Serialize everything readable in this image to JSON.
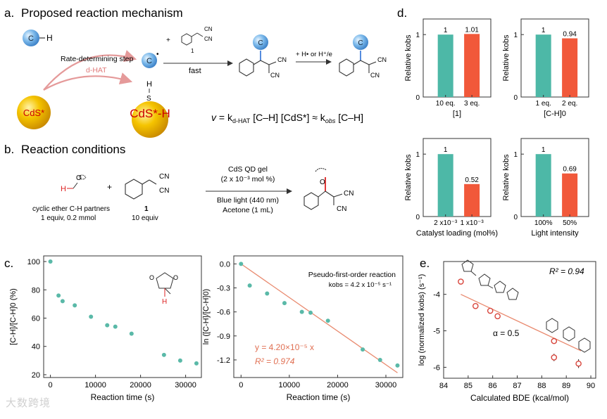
{
  "colors": {
    "teal": "#4db8a7",
    "orange": "#f1583a",
    "fit_line": "#e98a6f",
    "fit_text": "#e06f52",
    "point": "#5ab9a8",
    "bde_point": "#d8453c",
    "red": "#d22",
    "gold": "#f0b800",
    "sphere_blue": "#4a8fd2"
  },
  "panel_a": {
    "label": "a.",
    "title": "Proposed reaction mechanism",
    "radical_ch": "C",
    "h_atom": "H",
    "radical_c": "C",
    "radical_dot": "•",
    "rds": "Rate-determining step",
    "dhat": "d-HAT",
    "cds_star": "CdS*",
    "h_on_s": "H",
    "s_atom": "S",
    "cds_h": "CdS*-H",
    "plus": "+",
    "reagent_num": "1",
    "fast": "fast",
    "h_transfer": "+ H• or H⁺/e",
    "cn": "CN",
    "product_c": "C",
    "rate_v": "v",
    "rate_eq_mid": " = k",
    "rate_sub1": "d-HAT",
    "rate_eq_end": " [C–H] [CdS*] ≈ k",
    "rate_sub2": "obs",
    "rate_eq_tail": " [C–H]"
  },
  "panel_b": {
    "label": "b.",
    "title": "Reaction conditions",
    "partner_label": "cyclic ether C-H partners",
    "partner_amount": "1 equiv, 0.2 mmol",
    "h_atom": "H",
    "o_atom": "O",
    "plus": "+",
    "compound": "1",
    "compound_amount": "10 equiv",
    "cat_line1": "CdS QD gel",
    "cat_line2": "(2 x 10⁻³ mol %)",
    "cond_line1": "Blue light (440 nm)",
    "cond_line2": "Acetone (1 mL)",
    "cn": "CN"
  },
  "panel_c": {
    "label": "c.",
    "o_atom": "O",
    "h_atom": "H",
    "pseudo_title": "Pseudo-first-order reaction",
    "kobs_text": "kobs = 4.2 x 10⁻⁵ s⁻¹",
    "fit_eq": "y = 4.20×10⁻⁵ x",
    "r2_eq": "R² = 0.974"
  },
  "panel_d": {
    "label": "d."
  },
  "panel_e": {
    "label": "e.",
    "r2_text": "R² = 0.94",
    "alpha_text": "α = 0.5"
  },
  "watermark": "大数跨境",
  "chart_data": [
    {
      "id": "d1",
      "type": "bar",
      "categories": [
        "10 eq.",
        "3 eq."
      ],
      "values": [
        1,
        1.01
      ],
      "value_labels": [
        "1",
        "1.01"
      ],
      "ylabel": "Relative kobs",
      "xlabel": "[1]",
      "ylim": [
        0,
        1.25
      ],
      "yticks": [
        0,
        1
      ],
      "grid": false
    },
    {
      "id": "d2",
      "type": "bar",
      "categories": [
        "1 eq.",
        "2 eq."
      ],
      "values": [
        1,
        0.94
      ],
      "value_labels": [
        "1",
        "0.94"
      ],
      "ylabel": "Relative kobs",
      "xlabel": "[C-H]0",
      "ylim": [
        0,
        1.25
      ],
      "yticks": [
        0,
        1
      ],
      "grid": false
    },
    {
      "id": "d3",
      "type": "bar",
      "categories": [
        "2 x10⁻³",
        "1 x10⁻³"
      ],
      "values": [
        1,
        0.52
      ],
      "value_labels": [
        "1",
        "0.52"
      ],
      "ylabel": "Relative kobs",
      "xlabel": "Catalyst loading (mol%)",
      "ylim": [
        0,
        1.25
      ],
      "yticks": [
        0,
        1
      ],
      "grid": false
    },
    {
      "id": "d4",
      "type": "bar",
      "categories": [
        "100%",
        "50%"
      ],
      "values": [
        1,
        0.69
      ],
      "value_labels": [
        "1",
        "0.69"
      ],
      "ylabel": "Relative kobs",
      "xlabel": "Light intensity",
      "ylim": [
        0,
        1.25
      ],
      "yticks": [
        0,
        1
      ],
      "grid": false
    },
    {
      "id": "c1",
      "type": "scatter",
      "xlabel": "Reaction time (s)",
      "ylabel": "[C-H]/[C-H]0 (%)",
      "xlim": [
        -1500,
        33500
      ],
      "ylim": [
        18,
        104
      ],
      "xticks": [
        0,
        10000,
        20000,
        30000
      ],
      "yticks": [
        20,
        40,
        60,
        80,
        100
      ],
      "x": [
        0,
        1800,
        2700,
        5400,
        9000,
        12600,
        14400,
        18000,
        25200,
        28800,
        32400
      ],
      "y": [
        100,
        76,
        72,
        69,
        61,
        55,
        54,
        49,
        34,
        30,
        28
      ],
      "grid": false
    },
    {
      "id": "c2",
      "type": "scatter",
      "xlabel": "Reaction time (s)",
      "ylabel": "ln ([C-H]/[C-H]0)",
      "xlim": [
        -1500,
        33500
      ],
      "ylim": [
        -1.42,
        0.1
      ],
      "xticks": [
        0,
        10000,
        20000,
        30000
      ],
      "yticks": [
        0.0,
        -0.3,
        -0.6,
        -0.9,
        -1.2
      ],
      "x": [
        0,
        1800,
        5400,
        9000,
        12600,
        14400,
        18000,
        25200,
        28800,
        32400
      ],
      "y": [
        0,
        -0.27,
        -0.37,
        -0.49,
        -0.6,
        -0.61,
        -0.71,
        -1.07,
        -1.2,
        -1.27
      ],
      "fit": {
        "slope": -4.2e-05,
        "intercept": 0,
        "x_range": [
          0,
          32400
        ]
      },
      "grid": false
    },
    {
      "id": "e1",
      "type": "scatter",
      "xlabel": "Calculated BDE (kcal/mol)",
      "ylabel": "log (normalized kobs) (s⁻¹)",
      "xlim": [
        84,
        90.2
      ],
      "ylim": [
        -6.3,
        -3.1
      ],
      "xticks": [
        84,
        85,
        86,
        87,
        88,
        89,
        90
      ],
      "yticks": [
        -4,
        -5,
        -6
      ],
      "x": [
        84.7,
        85.3,
        85.9,
        86.2,
        88.5,
        88.5,
        89.5
      ],
      "y": [
        -3.65,
        -4.32,
        -4.45,
        -4.6,
        -5.28,
        -5.73,
        -5.9
      ],
      "yerr": [
        0.05,
        0.05,
        0.06,
        0.06,
        0.06,
        0.1,
        0.12
      ],
      "fit": {
        "x_range": [
          84.7,
          89.6
        ],
        "y_range": [
          -4.0,
          -5.55
        ]
      },
      "grid": false
    }
  ]
}
